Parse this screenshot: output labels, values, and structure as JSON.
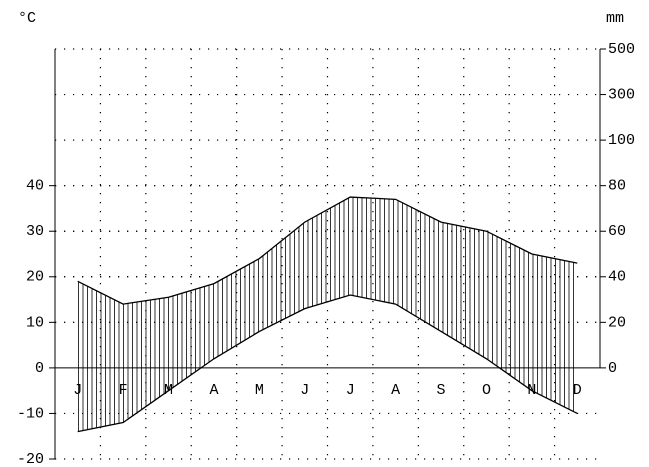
{
  "chart_data": {
    "type": "line",
    "y_unit": "°C",
    "y2_unit": "mm",
    "categories": [
      "J",
      "F",
      "M",
      "A",
      "M",
      "J",
      "J",
      "A",
      "S",
      "O",
      "N",
      "D"
    ],
    "series": [
      {
        "color": "#000000",
        "values": [
          -14,
          -12,
          -5,
          2,
          8,
          13,
          16,
          14,
          8,
          2,
          -5,
          -10
        ]
      },
      {
        "color": "#000000",
        "axis": "y2",
        "values": [
          38,
          28,
          31,
          37,
          48,
          64,
          75,
          74,
          64,
          60,
          50,
          46
        ]
      }
    ],
    "ylim": [
      -20,
      70
    ],
    "yticks": [
      -20,
      -10,
      0,
      10,
      20,
      30,
      40
    ],
    "y2lim": [
      0,
      500
    ],
    "y2ticks": [
      0,
      20,
      40,
      60,
      80,
      100,
      300,
      500
    ],
    "grid": true
  }
}
